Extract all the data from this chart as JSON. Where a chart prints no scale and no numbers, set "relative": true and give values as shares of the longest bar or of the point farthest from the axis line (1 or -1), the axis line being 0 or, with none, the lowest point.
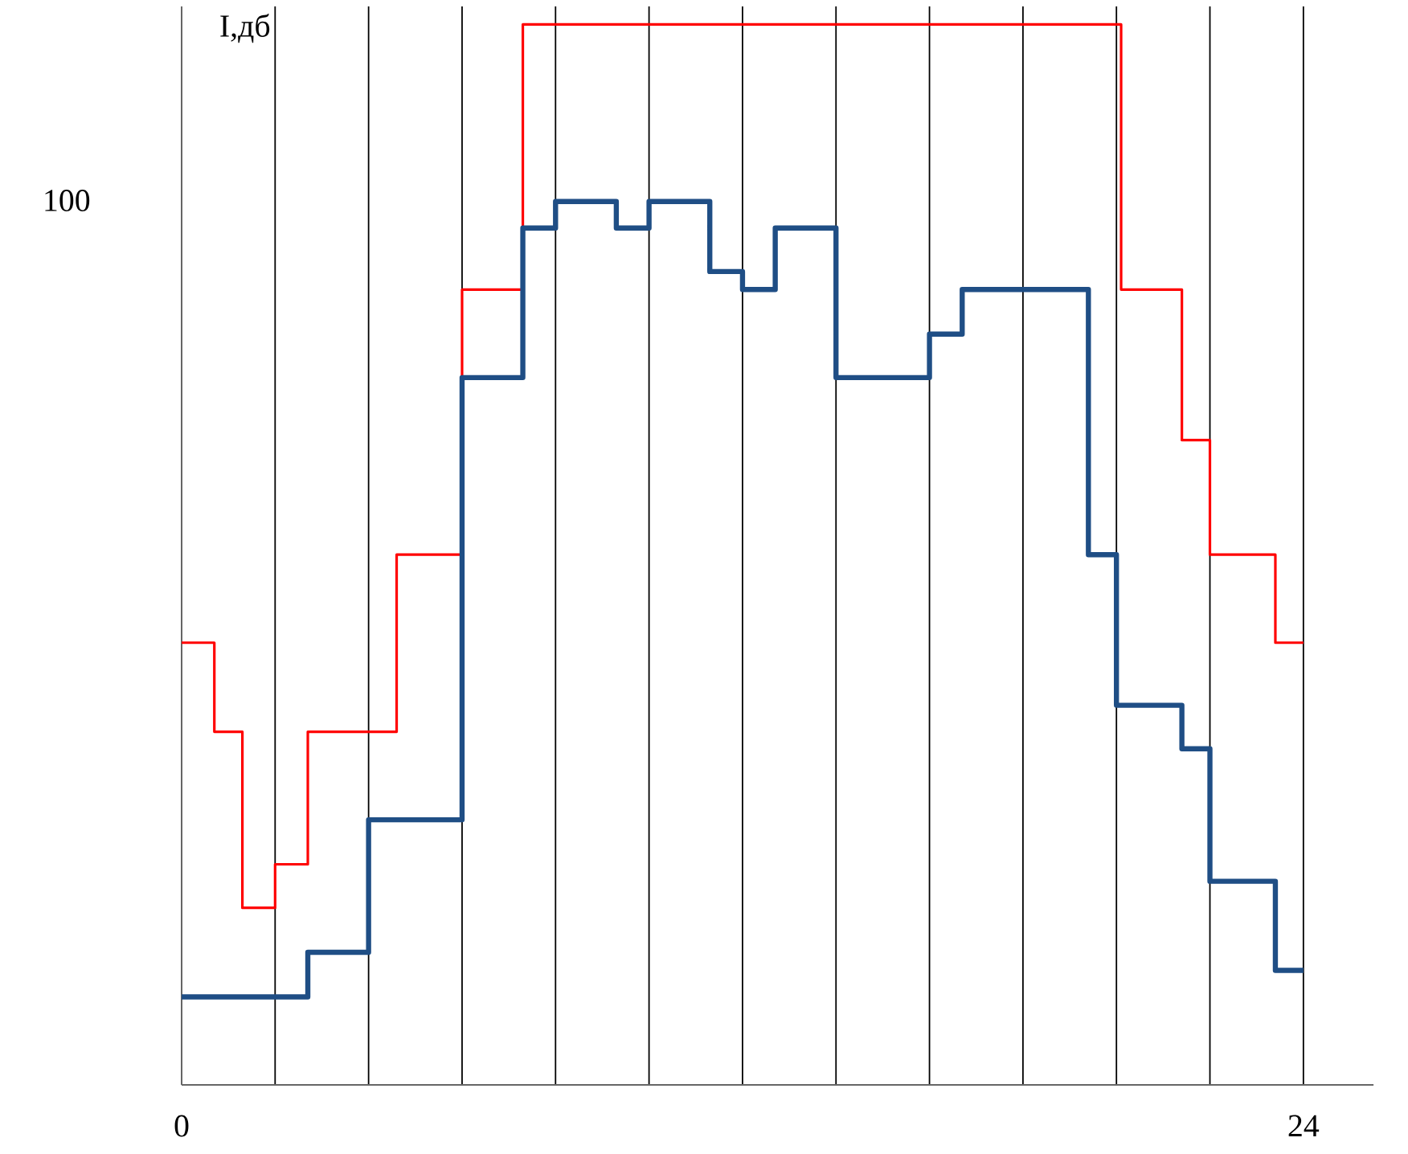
{
  "chart_data": {
    "type": "step",
    "ylabel": "I,дб",
    "relative": true,
    "xlim": [
      0,
      25.5
    ],
    "xticks": [
      0,
      {
        "value": 2,
        "label": null
      },
      {
        "value": 4,
        "label": null
      },
      {
        "value": 6,
        "label": null
      },
      {
        "value": 8,
        "label": null
      },
      {
        "value": 10,
        "label": null
      },
      {
        "value": 12,
        "label": null
      },
      {
        "value": 14,
        "label": null
      },
      {
        "value": 16,
        "label": null
      },
      {
        "value": 18,
        "label": null
      },
      {
        "value": 20,
        "label": null
      },
      {
        "value": 22,
        "label": null
      },
      24
    ],
    "grid": "x",
    "annotations": [
      "100"
    ],
    "series": [
      {
        "color": "#ff0000",
        "x": [
          0,
          0.7,
          1.3,
          2,
          2.7,
          4.6,
          6,
          7.3,
          20.1,
          21.4,
          22,
          23.4,
          24
        ],
        "values": [
          0.417,
          0.333,
          0.167,
          0.208,
          0.333,
          0.5,
          0.75,
          1,
          0.75,
          0.608,
          0.5,
          0.417,
          0.417
        ]
      },
      {
        "color": "#1f4e85",
        "x": [
          0,
          2.7,
          4,
          6,
          7.3,
          8,
          9.3,
          10,
          11.3,
          12,
          12.7,
          14,
          16,
          16.7,
          19.4,
          20,
          21.4,
          22,
          23.4,
          24
        ],
        "values": [
          0.083,
          0.125,
          0.25,
          0.667,
          0.808,
          0.833,
          0.808,
          0.833,
          0.767,
          0.75,
          0.808,
          0.667,
          0.708,
          0.75,
          0.5,
          0.358,
          0.317,
          0.192,
          0.108,
          0.108
        ]
      }
    ]
  }
}
